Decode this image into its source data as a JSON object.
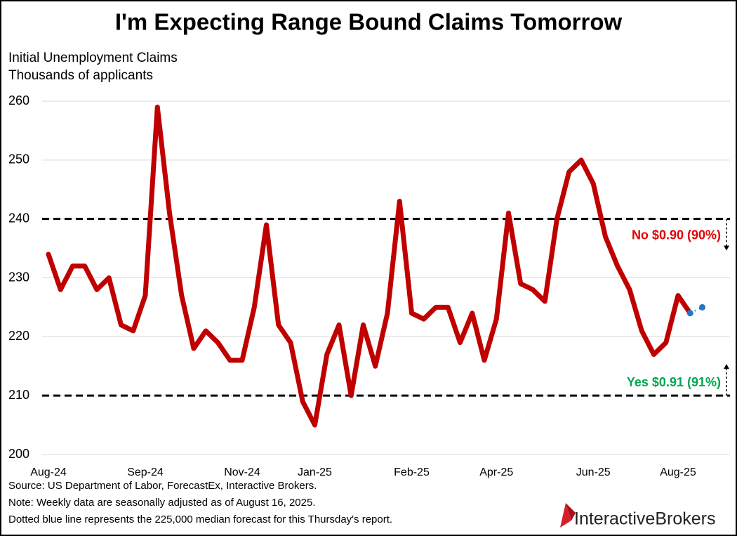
{
  "chart_data": {
    "type": "line",
    "title": "I'm Expecting Range Bound Claims Tomorrow",
    "y_label_line1": "Initial Unemployment Claims",
    "y_label_line2": "Thousands of applicants",
    "categories": [
      "Aug-24",
      null,
      null,
      null,
      null,
      null,
      null,
      null,
      "Sep-24",
      null,
      null,
      null,
      null,
      null,
      null,
      null,
      "Nov-24",
      null,
      null,
      null,
      null,
      null,
      "Jan-25",
      null,
      null,
      null,
      null,
      null,
      null,
      null,
      "Feb-25",
      null,
      null,
      null,
      null,
      null,
      null,
      "Apr-25",
      null,
      null,
      null,
      null,
      null,
      null,
      null,
      "Jun-25",
      null,
      null,
      null,
      null,
      null,
      null,
      "Aug-25",
      null,
      null
    ],
    "series": [
      {
        "color": "#c00000",
        "values": [
          234,
          228,
          232,
          232,
          228,
          230,
          222,
          221,
          227,
          259,
          241,
          227,
          218,
          221,
          219,
          216,
          216,
          225,
          239,
          222,
          219,
          209,
          205,
          217,
          222,
          210,
          222,
          215,
          224,
          243,
          224,
          223,
          225,
          225,
          219,
          224,
          216,
          223,
          241,
          229,
          228,
          226,
          240,
          248,
          250,
          246,
          237,
          232,
          228,
          221,
          217,
          219,
          227,
          224,
          null
        ]
      },
      {
        "color": "#1f77c8",
        "values": [
          null,
          null,
          null,
          null,
          null,
          null,
          null,
          null,
          null,
          null,
          null,
          null,
          null,
          null,
          null,
          null,
          null,
          null,
          null,
          null,
          null,
          null,
          null,
          null,
          null,
          null,
          null,
          null,
          null,
          null,
          null,
          null,
          null,
          null,
          null,
          null,
          null,
          null,
          null,
          null,
          null,
          null,
          null,
          null,
          null,
          null,
          null,
          null,
          null,
          null,
          null,
          null,
          null,
          224,
          225
        ]
      }
    ],
    "ylim": [
      200,
      260
    ],
    "yticks": [
      200,
      210,
      220,
      230,
      240,
      250,
      260
    ],
    "grid": true,
    "reference_lines": [
      {
        "value": 240,
        "label": "No $0.90 (90%)",
        "color": "#e00000"
      },
      {
        "value": 210,
        "label": "Yes $0.91 (91%)",
        "color": "#00a550"
      }
    ],
    "notes": [
      "Source: US Department of Labor, ForecastEx, Interactive Brokers.",
      "Note: Weekly data are seasonally adjusted as of August 16, 2025.",
      "Dotted blue line represents the 225,000 median forecast for this Thursday's report."
    ],
    "logo": "InteractiveBrokers"
  }
}
